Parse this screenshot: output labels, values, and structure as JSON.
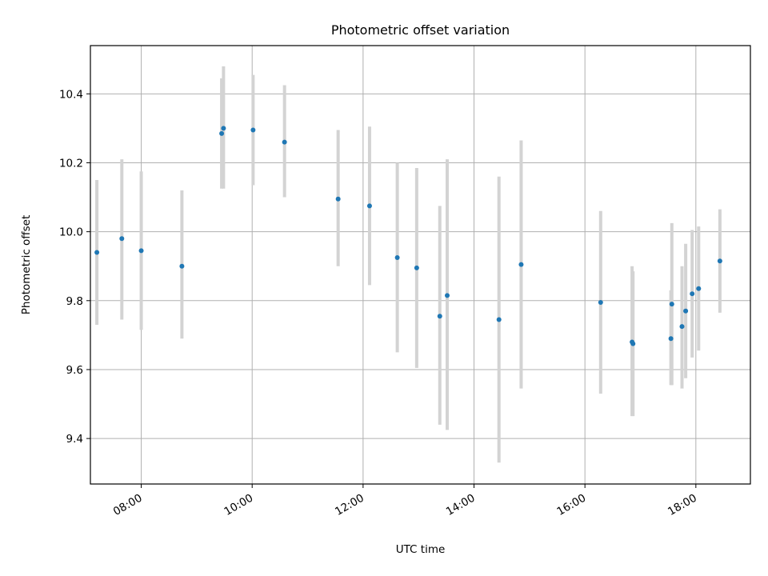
{
  "chart_data": {
    "type": "scatter",
    "title": "Photometric offset variation",
    "xlabel": "UTC time",
    "ylabel": "Photometric offset",
    "x_axis_type": "time",
    "xlim": [
      "07:05",
      "18:59"
    ],
    "ylim": [
      9.268,
      10.54
    ],
    "x_ticks": [
      "08:00",
      "10:00",
      "12:00",
      "14:00",
      "16:00",
      "18:00"
    ],
    "y_ticks": [
      9.4,
      9.6,
      9.8,
      10.0,
      10.2,
      10.4
    ],
    "y_tick_labels": [
      "9.4",
      "9.6",
      "9.8",
      "10.0",
      "10.2",
      "10.4"
    ],
    "grid": true,
    "legend": "none",
    "colors": {
      "point": "#1f77b4",
      "errorbar": "#d3d3d3",
      "grid": "#b0b0b0"
    },
    "points": [
      {
        "x": "07:12",
        "y": 9.94,
        "ylo": 9.73,
        "yhi": 10.15
      },
      {
        "x": "07:39",
        "y": 9.98,
        "ylo": 9.745,
        "yhi": 10.21
      },
      {
        "x": "08:00",
        "y": 9.945,
        "ylo": 9.715,
        "yhi": 10.175
      },
      {
        "x": "08:44",
        "y": 9.9,
        "ylo": 9.69,
        "yhi": 10.12
      },
      {
        "x": "09:27",
        "y": 10.285,
        "ylo": 10.125,
        "yhi": 10.445
      },
      {
        "x": "09:29",
        "y": 10.3,
        "ylo": 10.125,
        "yhi": 10.48
      },
      {
        "x": "10:01",
        "y": 10.295,
        "ylo": 10.135,
        "yhi": 10.455
      },
      {
        "x": "10:35",
        "y": 10.26,
        "ylo": 10.1,
        "yhi": 10.425
      },
      {
        "x": "11:33",
        "y": 10.095,
        "ylo": 9.9,
        "yhi": 10.295
      },
      {
        "x": "12:07",
        "y": 10.075,
        "ylo": 9.845,
        "yhi": 10.305
      },
      {
        "x": "12:37",
        "y": 9.925,
        "ylo": 9.65,
        "yhi": 10.2
      },
      {
        "x": "12:58",
        "y": 9.895,
        "ylo": 9.605,
        "yhi": 10.185
      },
      {
        "x": "13:23",
        "y": 9.755,
        "ylo": 9.44,
        "yhi": 10.075
      },
      {
        "x": "13:31",
        "y": 9.815,
        "ylo": 9.425,
        "yhi": 10.21
      },
      {
        "x": "14:27",
        "y": 9.745,
        "ylo": 9.33,
        "yhi": 10.16
      },
      {
        "x": "14:51",
        "y": 9.905,
        "ylo": 9.545,
        "yhi": 10.265
      },
      {
        "x": "16:17",
        "y": 9.795,
        "ylo": 9.53,
        "yhi": 10.06
      },
      {
        "x": "16:51",
        "y": 9.68,
        "ylo": 9.465,
        "yhi": 9.9
      },
      {
        "x": "16:52",
        "y": 9.675,
        "ylo": 9.465,
        "yhi": 9.885
      },
      {
        "x": "17:33",
        "y": 9.69,
        "ylo": 9.555,
        "yhi": 9.83
      },
      {
        "x": "17:34",
        "y": 9.79,
        "ylo": 9.555,
        "yhi": 10.025
      },
      {
        "x": "17:45",
        "y": 9.725,
        "ylo": 9.545,
        "yhi": 9.9
      },
      {
        "x": "17:49",
        "y": 9.77,
        "ylo": 9.575,
        "yhi": 9.965
      },
      {
        "x": "17:56",
        "y": 9.82,
        "ylo": 9.635,
        "yhi": 10.005
      },
      {
        "x": "18:03",
        "y": 9.835,
        "ylo": 9.655,
        "yhi": 10.015
      },
      {
        "x": "18:26",
        "y": 9.915,
        "ylo": 9.765,
        "yhi": 10.065
      }
    ]
  }
}
